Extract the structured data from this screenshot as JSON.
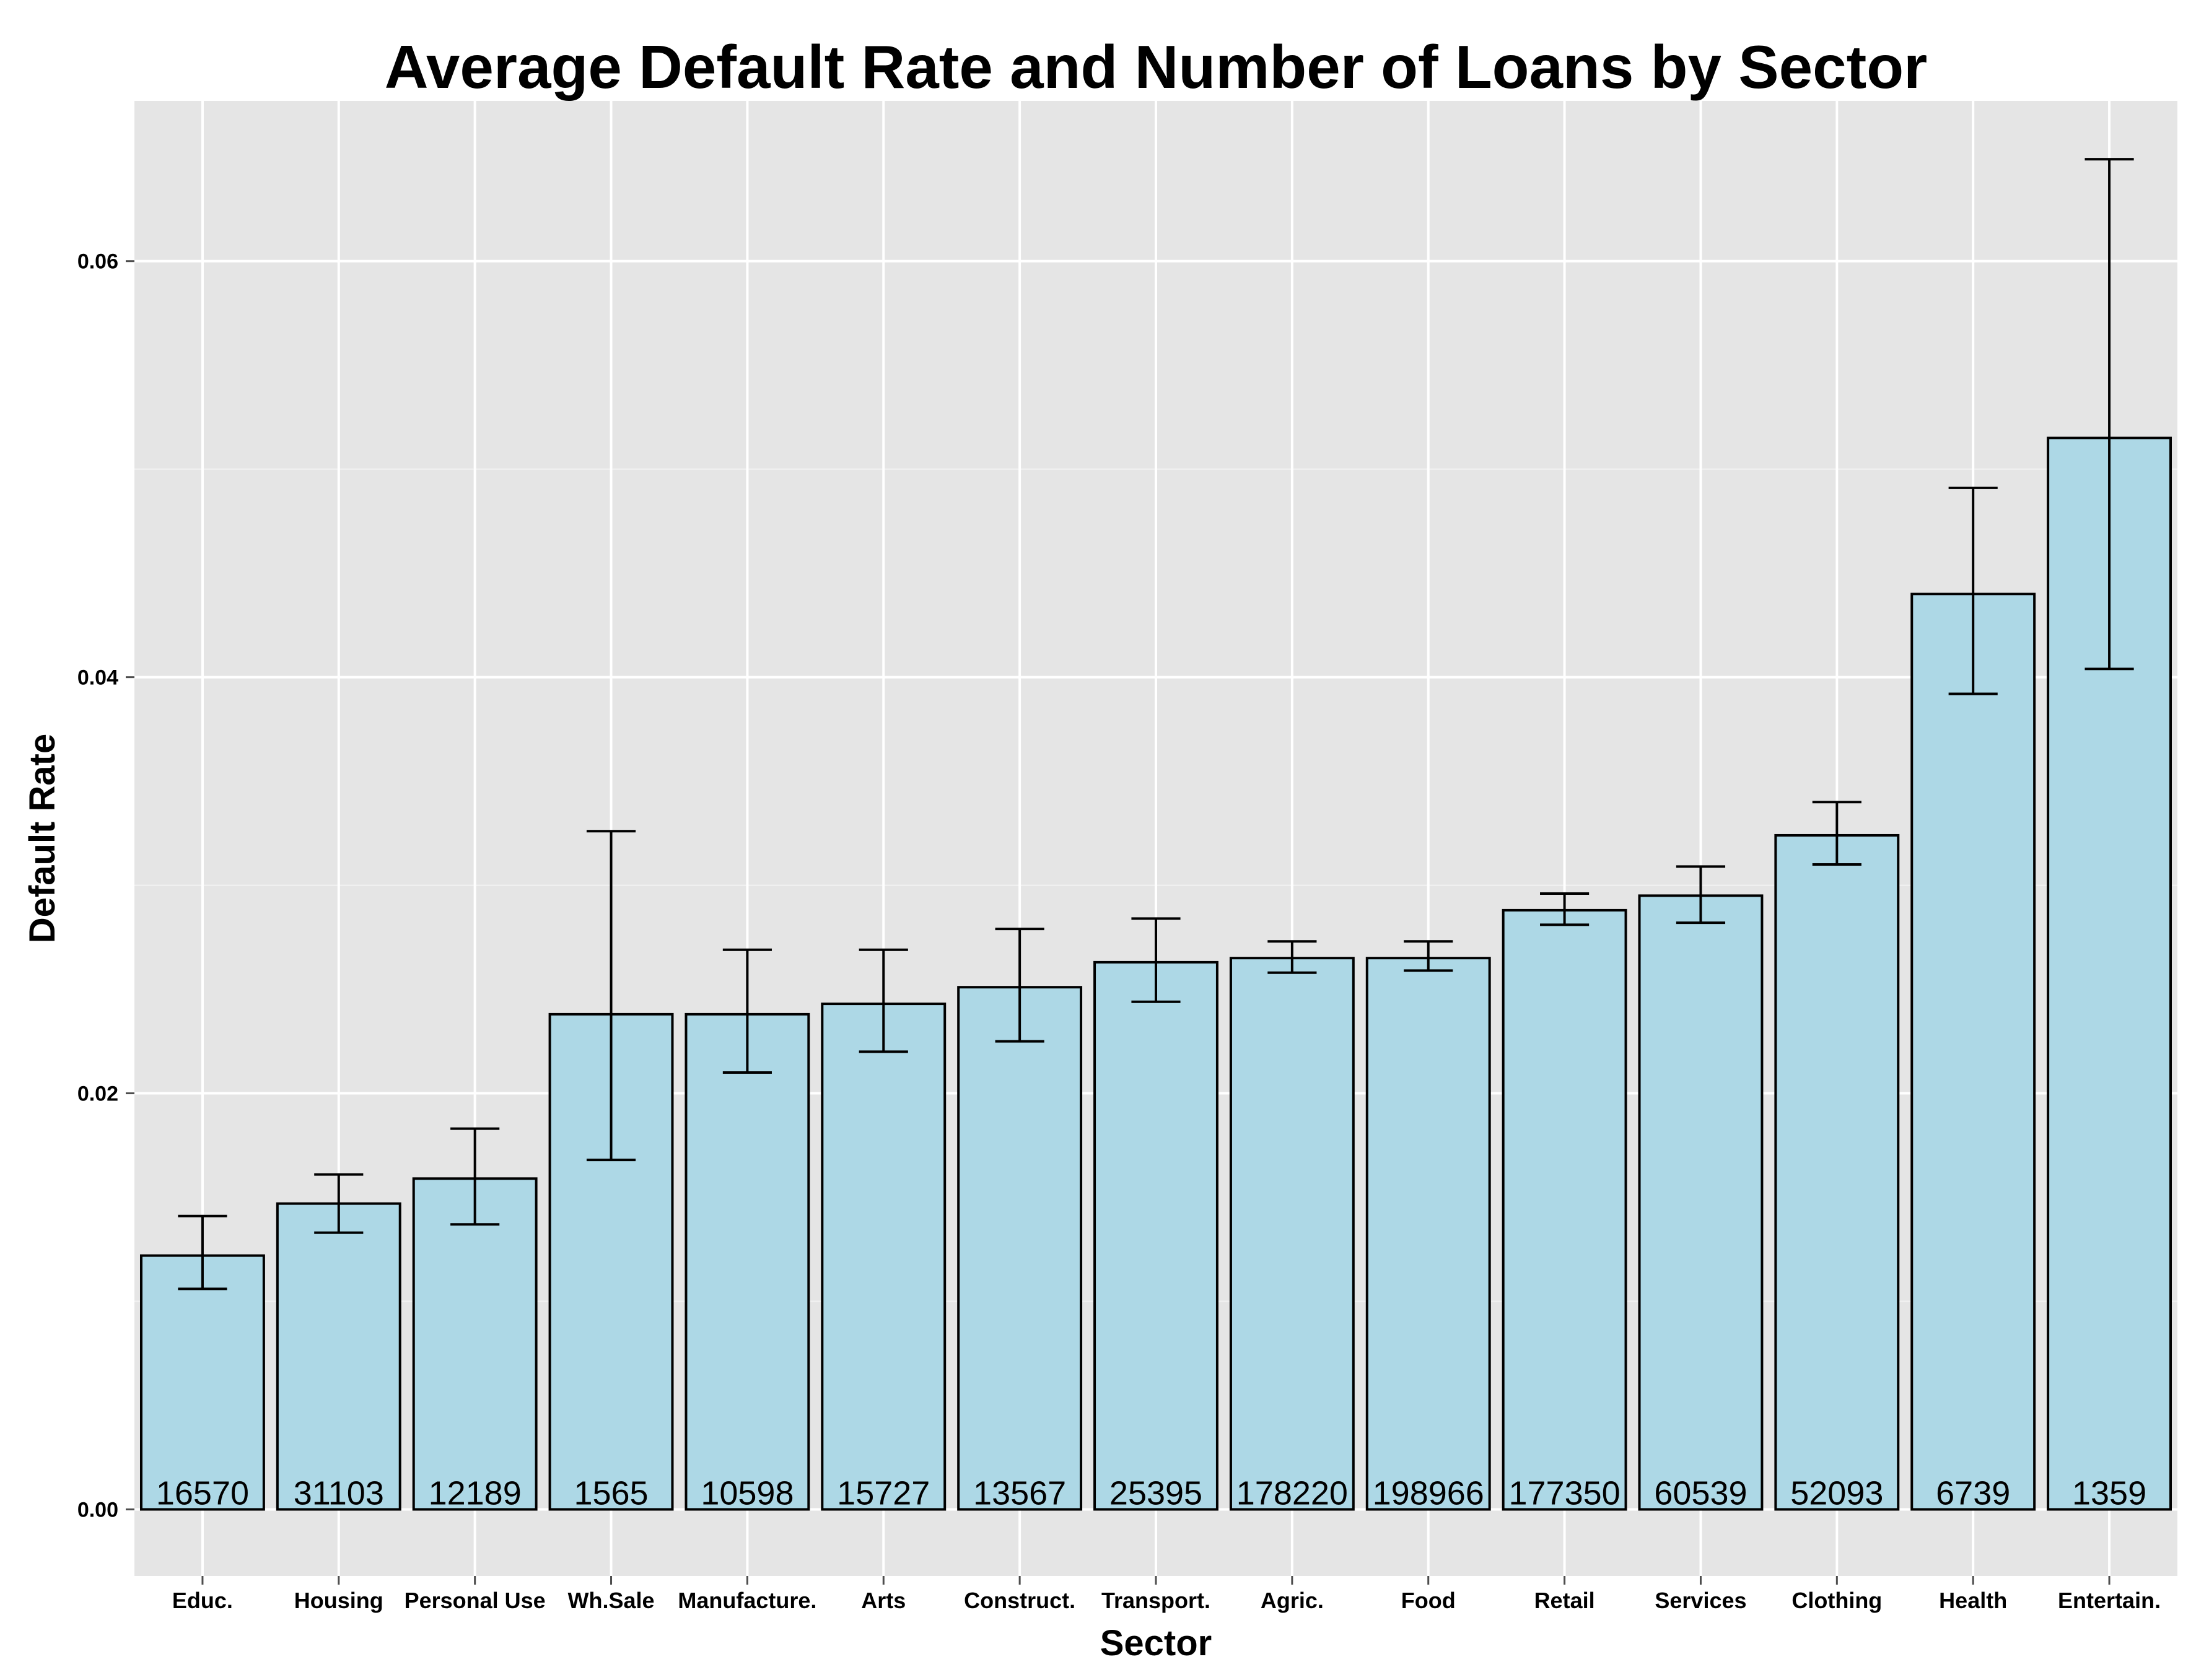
{
  "chart_data": {
    "type": "bar",
    "title": "Average Default Rate and Number of Loans by Sector",
    "xlabel": "Sector",
    "ylabel": "Default Rate",
    "ylim": [
      -0.0032,
      0.0677
    ],
    "yticks": [
      "0.00",
      "0.02",
      "0.04",
      "0.06"
    ],
    "grid": true,
    "categories": [
      "Educ.",
      "Housing",
      "Personal Use",
      "Wh.Sale",
      "Manufacture.",
      "Arts",
      "Construct.",
      "Transport.",
      "Agric.",
      "Food",
      "Retail",
      "Services",
      "Clothing",
      "Health",
      "Entertain."
    ],
    "values": [
      0.0122,
      0.0147,
      0.0159,
      0.0238,
      0.0238,
      0.0243,
      0.0251,
      0.0263,
      0.0265,
      0.0265,
      0.0288,
      0.0295,
      0.0324,
      0.044,
      0.0515
    ],
    "error_low": [
      0.0106,
      0.0133,
      0.0137,
      0.0168,
      0.021,
      0.022,
      0.0225,
      0.0244,
      0.0258,
      0.0259,
      0.0281,
      0.0282,
      0.031,
      0.0392,
      0.0404
    ],
    "error_high": [
      0.0141,
      0.0161,
      0.0183,
      0.0326,
      0.0269,
      0.0269,
      0.0279,
      0.0284,
      0.0273,
      0.0273,
      0.0296,
      0.0309,
      0.034,
      0.0491,
      0.0649
    ],
    "counts": [
      "16570",
      "31103",
      "12189",
      "1565",
      "10598",
      "15727",
      "13567",
      "25395",
      "178220",
      "198966",
      "177350",
      "60539",
      "52093",
      "6739",
      "1359"
    ],
    "colors": {
      "bar_fill": "#add8e6",
      "bar_stroke": "#000000",
      "panel": "#e5e5e5",
      "grid": "#ffffff"
    }
  }
}
